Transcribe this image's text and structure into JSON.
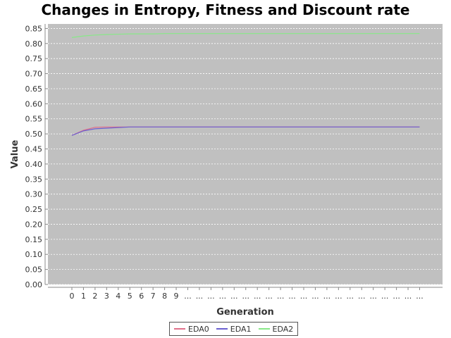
{
  "chart_data": {
    "type": "line",
    "title": "Changes in Entropy, Fitness and Discount rate",
    "xlabel": "Generation",
    "ylabel": "Value",
    "ylim": [
      0.0,
      0.85
    ],
    "y_ticks": [
      "0.00",
      "0.05",
      "0.10",
      "0.15",
      "0.20",
      "0.25",
      "0.30",
      "0.35",
      "0.40",
      "0.45",
      "0.50",
      "0.55",
      "0.60",
      "0.65",
      "0.70",
      "0.75",
      "0.80",
      "0.85"
    ],
    "categories": [
      "0",
      "1",
      "2",
      "3",
      "4",
      "5",
      "6",
      "7",
      "8",
      "9",
      "...",
      "...",
      "...",
      "...",
      "...",
      "...",
      "...",
      "...",
      "...",
      "...",
      "...",
      "...",
      "...",
      "...",
      "...",
      "...",
      "...",
      "...",
      "...",
      "...",
      "..."
    ],
    "grid": true,
    "legend_position": "bottom",
    "series": [
      {
        "name": "EDA0",
        "color": "#e0708a",
        "values": [
          0.495,
          0.512,
          0.522,
          0.523,
          0.523,
          0.523,
          0.523,
          0.523,
          0.523,
          0.523,
          0.523,
          0.523,
          0.523,
          0.523,
          0.523,
          0.523,
          0.523,
          0.523,
          0.523,
          0.523,
          0.523,
          0.523,
          0.523,
          0.523,
          0.523,
          0.523,
          0.523,
          0.523,
          0.523,
          0.523,
          0.523
        ]
      },
      {
        "name": "EDA1",
        "color": "#6a5fd0",
        "values": [
          0.495,
          0.51,
          0.517,
          0.519,
          0.521,
          0.523,
          0.523,
          0.523,
          0.523,
          0.523,
          0.523,
          0.523,
          0.523,
          0.523,
          0.523,
          0.523,
          0.523,
          0.523,
          0.523,
          0.523,
          0.523,
          0.523,
          0.523,
          0.523,
          0.523,
          0.523,
          0.523,
          0.523,
          0.523,
          0.523,
          0.523
        ]
      },
      {
        "name": "EDA2",
        "color": "#88e888",
        "values": [
          0.82,
          0.825,
          0.828,
          0.83,
          0.831,
          0.832,
          0.832,
          0.832,
          0.833,
          0.833,
          0.833,
          0.833,
          0.833,
          0.833,
          0.833,
          0.833,
          0.833,
          0.833,
          0.833,
          0.833,
          0.833,
          0.833,
          0.833,
          0.833,
          0.833,
          0.833,
          0.833,
          0.833,
          0.833,
          0.833,
          0.833
        ]
      }
    ]
  }
}
